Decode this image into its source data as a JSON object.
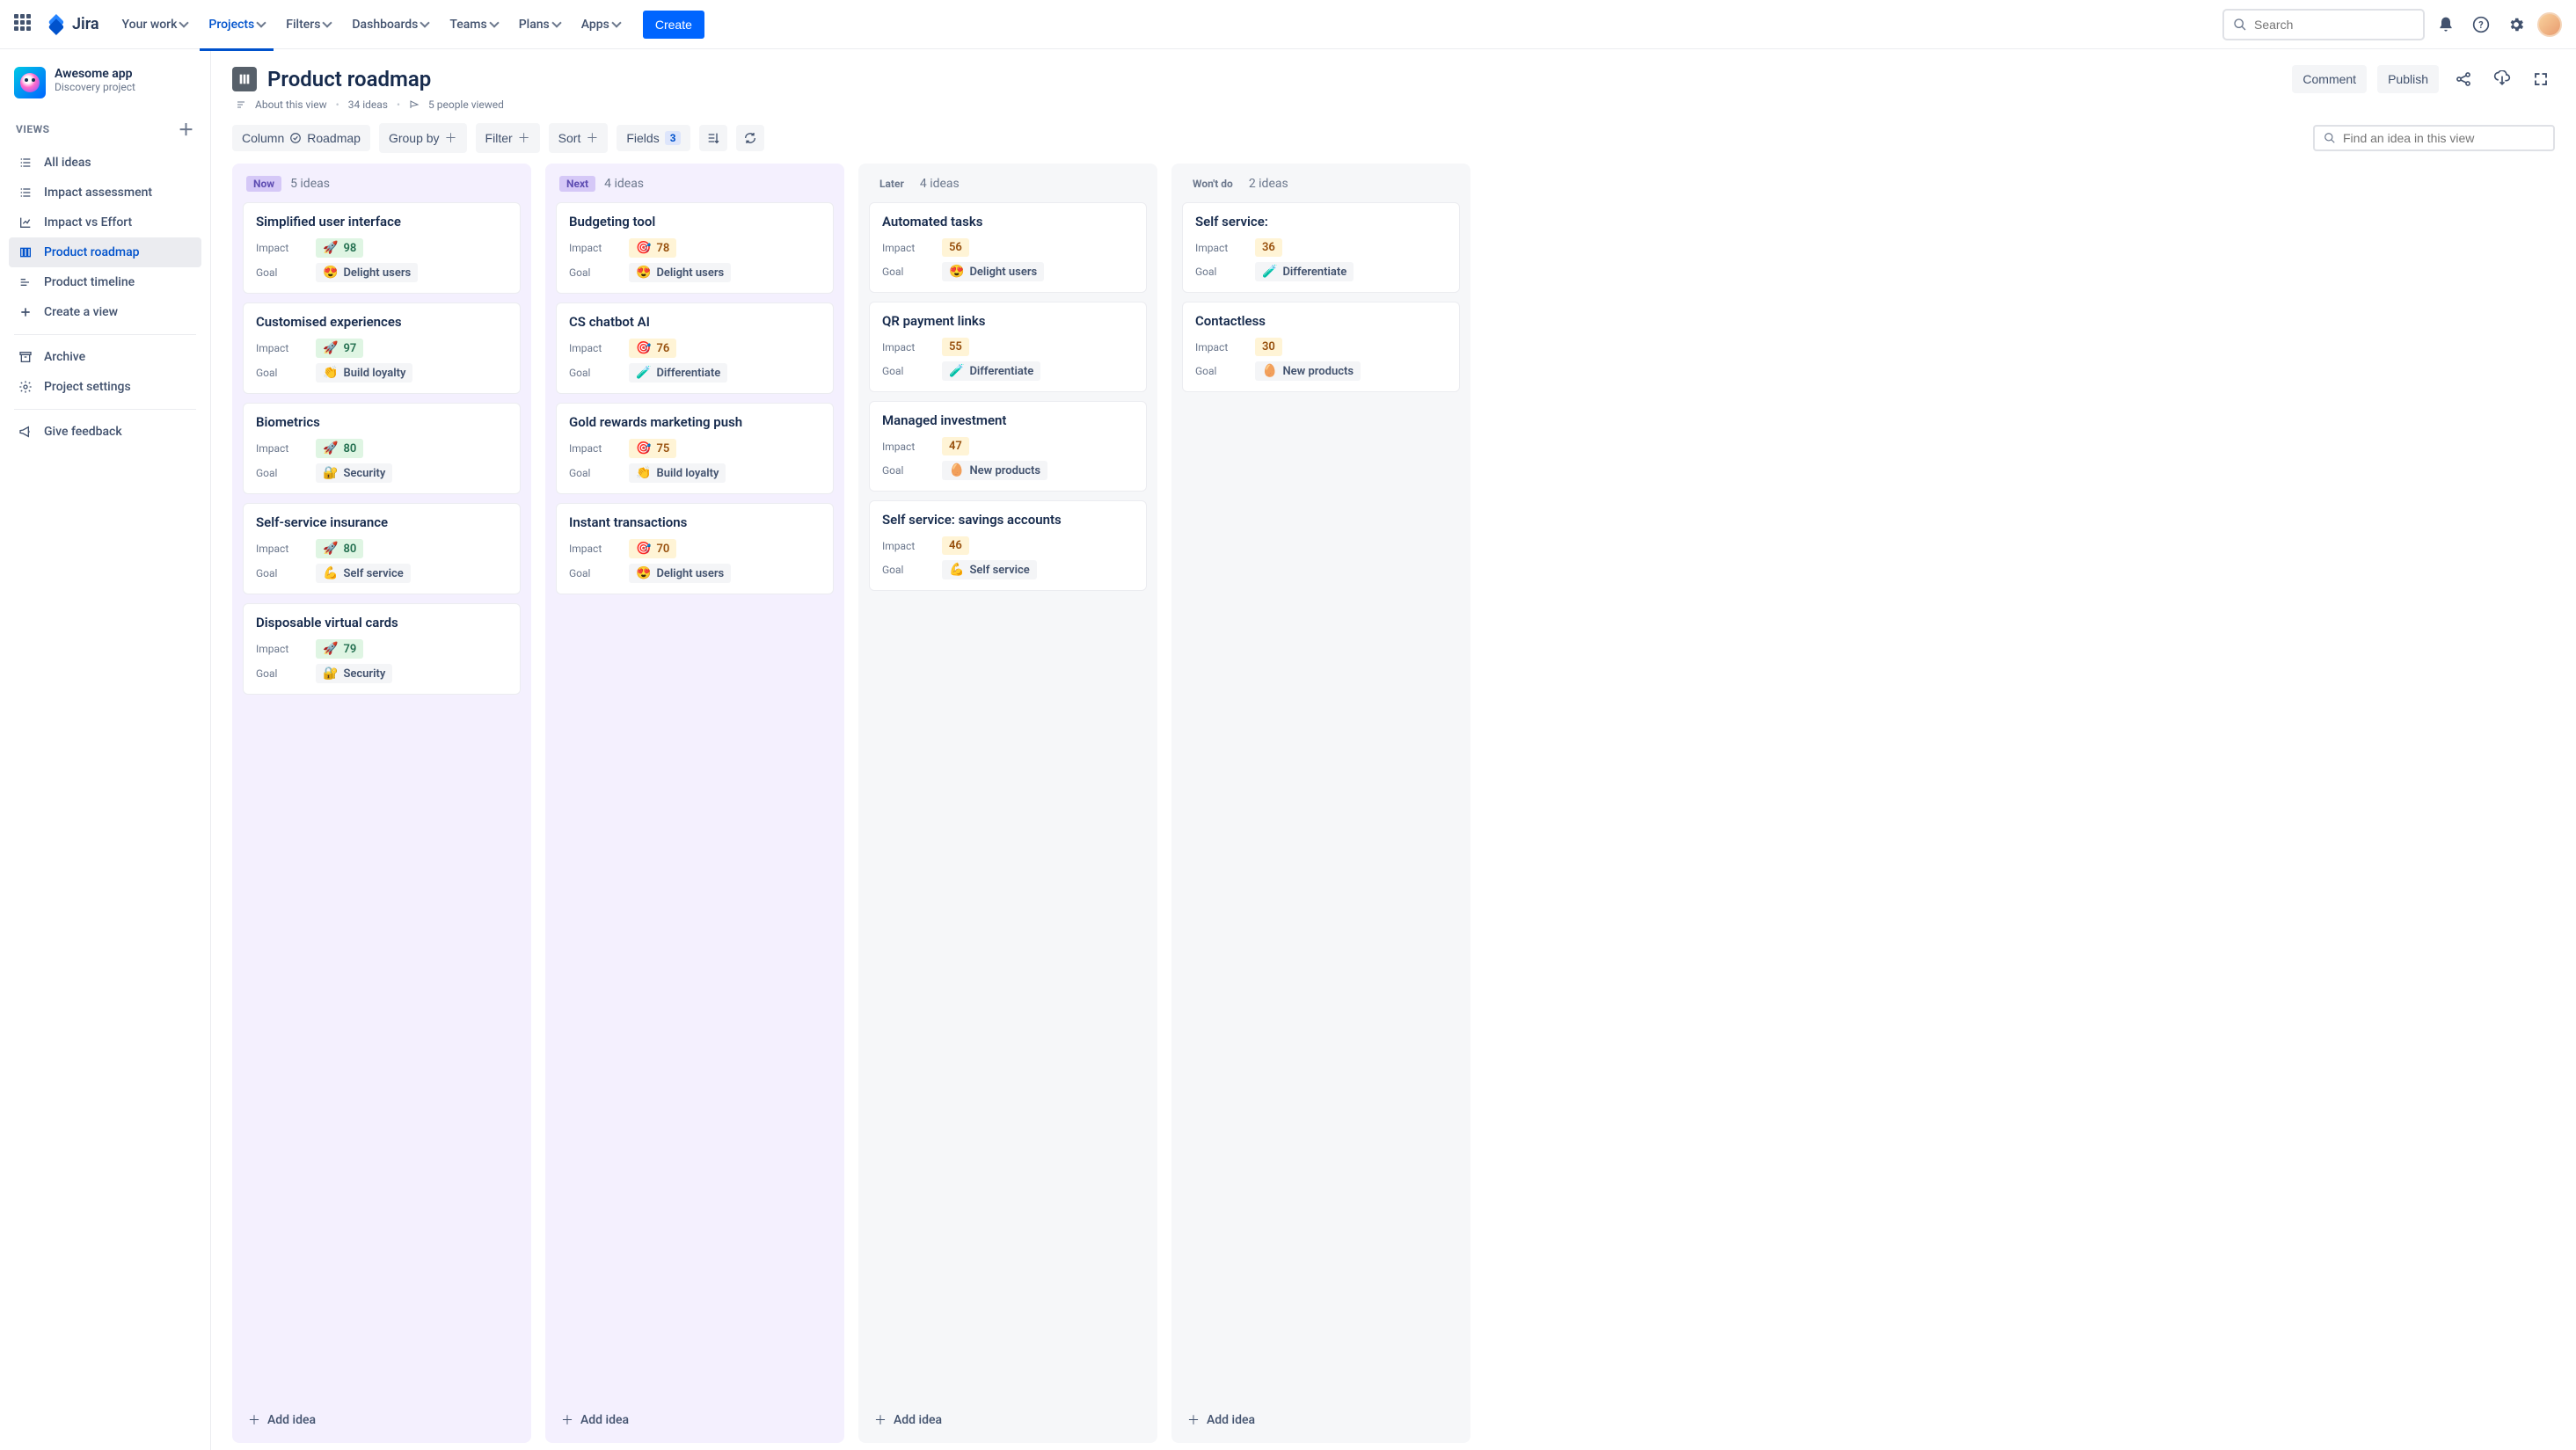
{
  "nav": {
    "logo": "Jira",
    "items": [
      "Your work",
      "Projects",
      "Filters",
      "Dashboards",
      "Teams",
      "Plans",
      "Apps"
    ],
    "activeIndex": 1,
    "create": "Create",
    "searchPlaceholder": "Search"
  },
  "sidebar": {
    "projectName": "Awesome app",
    "projectSubtitle": "Discovery project",
    "viewsLabel": "VIEWS",
    "views": [
      {
        "label": "All ideas",
        "icon": "list"
      },
      {
        "label": "Impact assessment",
        "icon": "list"
      },
      {
        "label": "Impact vs Effort",
        "icon": "matrix"
      },
      {
        "label": "Product roadmap",
        "icon": "board",
        "selected": true
      },
      {
        "label": "Product timeline",
        "icon": "timeline"
      },
      {
        "label": "Create a view",
        "icon": "plus"
      }
    ],
    "archive": "Archive",
    "settings": "Project settings",
    "feedback": "Give feedback"
  },
  "page": {
    "title": "Product roadmap",
    "comment": "Comment",
    "publish": "Publish",
    "aboutView": "About this view",
    "ideasCount": "34 ideas",
    "peopleViewed": "5 people viewed"
  },
  "toolbar": {
    "columnLabel": "Column",
    "columnValue": "Roadmap",
    "groupBy": "Group by",
    "filter": "Filter",
    "sort": "Sort",
    "fields": "Fields",
    "fieldsBadge": "3",
    "findPlaceholder": "Find an idea in this view"
  },
  "goalStyles": {
    "Delight users": "😍",
    "Build loyalty": "👏",
    "Security": "🔐",
    "Self service": "💪",
    "Differentiate": "🧪",
    "New products": "🥚"
  },
  "columns": [
    {
      "key": "now",
      "tag": "Now",
      "tagClass": "tag-now",
      "colClass": "col-now",
      "count": "5 ideas",
      "cards": [
        {
          "title": "Simplified user interface",
          "impact": 98,
          "impactClass": "pill-green",
          "impactEmoji": "🚀",
          "goal": "Delight users"
        },
        {
          "title": "Customised experiences",
          "impact": 97,
          "impactClass": "pill-green",
          "impactEmoji": "🚀",
          "goal": "Build loyalty"
        },
        {
          "title": "Biometrics",
          "impact": 80,
          "impactClass": "pill-green",
          "impactEmoji": "🚀",
          "goal": "Security"
        },
        {
          "title": "Self-service insurance",
          "impact": 80,
          "impactClass": "pill-green",
          "impactEmoji": "🚀",
          "goal": "Self service"
        },
        {
          "title": "Disposable virtual cards",
          "impact": 79,
          "impactClass": "pill-green",
          "impactEmoji": "🚀",
          "goal": "Security"
        }
      ]
    },
    {
      "key": "next",
      "tag": "Next",
      "tagClass": "tag-next",
      "colClass": "col-next",
      "count": "4 ideas",
      "cards": [
        {
          "title": "Budgeting tool",
          "impact": 78,
          "impactClass": "pill-amber",
          "impactEmoji": "🎯",
          "goal": "Delight users"
        },
        {
          "title": "CS chatbot AI",
          "impact": 76,
          "impactClass": "pill-amber",
          "impactEmoji": "🎯",
          "goal": "Differentiate"
        },
        {
          "title": "Gold rewards marketing push",
          "impact": 75,
          "impactClass": "pill-amber",
          "impactEmoji": "🎯",
          "goal": "Build loyalty"
        },
        {
          "title": "Instant transactions",
          "impact": 70,
          "impactClass": "pill-amber",
          "impactEmoji": "🎯",
          "goal": "Delight users"
        }
      ]
    },
    {
      "key": "later",
      "tag": "Later",
      "tagClass": "tag-later",
      "colClass": "col-later",
      "count": "4 ideas",
      "cards": [
        {
          "title": "Automated tasks",
          "impact": 56,
          "impactClass": "pill-amber",
          "impactEmoji": "",
          "goal": "Delight users"
        },
        {
          "title": "QR payment links",
          "impact": 55,
          "impactClass": "pill-amber",
          "impactEmoji": "",
          "goal": "Differentiate"
        },
        {
          "title": "Managed investment",
          "impact": 47,
          "impactClass": "pill-amber",
          "impactEmoji": "",
          "goal": "New products"
        },
        {
          "title": "Self service: savings accounts",
          "impact": 46,
          "impactClass": "pill-amber",
          "impactEmoji": "",
          "goal": "Self service"
        }
      ]
    },
    {
      "key": "wont",
      "tag": "Won't do",
      "tagClass": "tag-wont",
      "colClass": "col-wont",
      "count": "2 ideas",
      "cards": [
        {
          "title": "Self service:",
          "impact": 36,
          "impactClass": "pill-amber",
          "impactEmoji": "",
          "goal": "Differentiate"
        },
        {
          "title": "Contactless",
          "impact": 30,
          "impactClass": "pill-amber",
          "impactEmoji": "",
          "goal": "New products"
        }
      ]
    }
  ],
  "labels": {
    "impact": "Impact",
    "goal": "Goal",
    "addIdea": "Add idea"
  }
}
